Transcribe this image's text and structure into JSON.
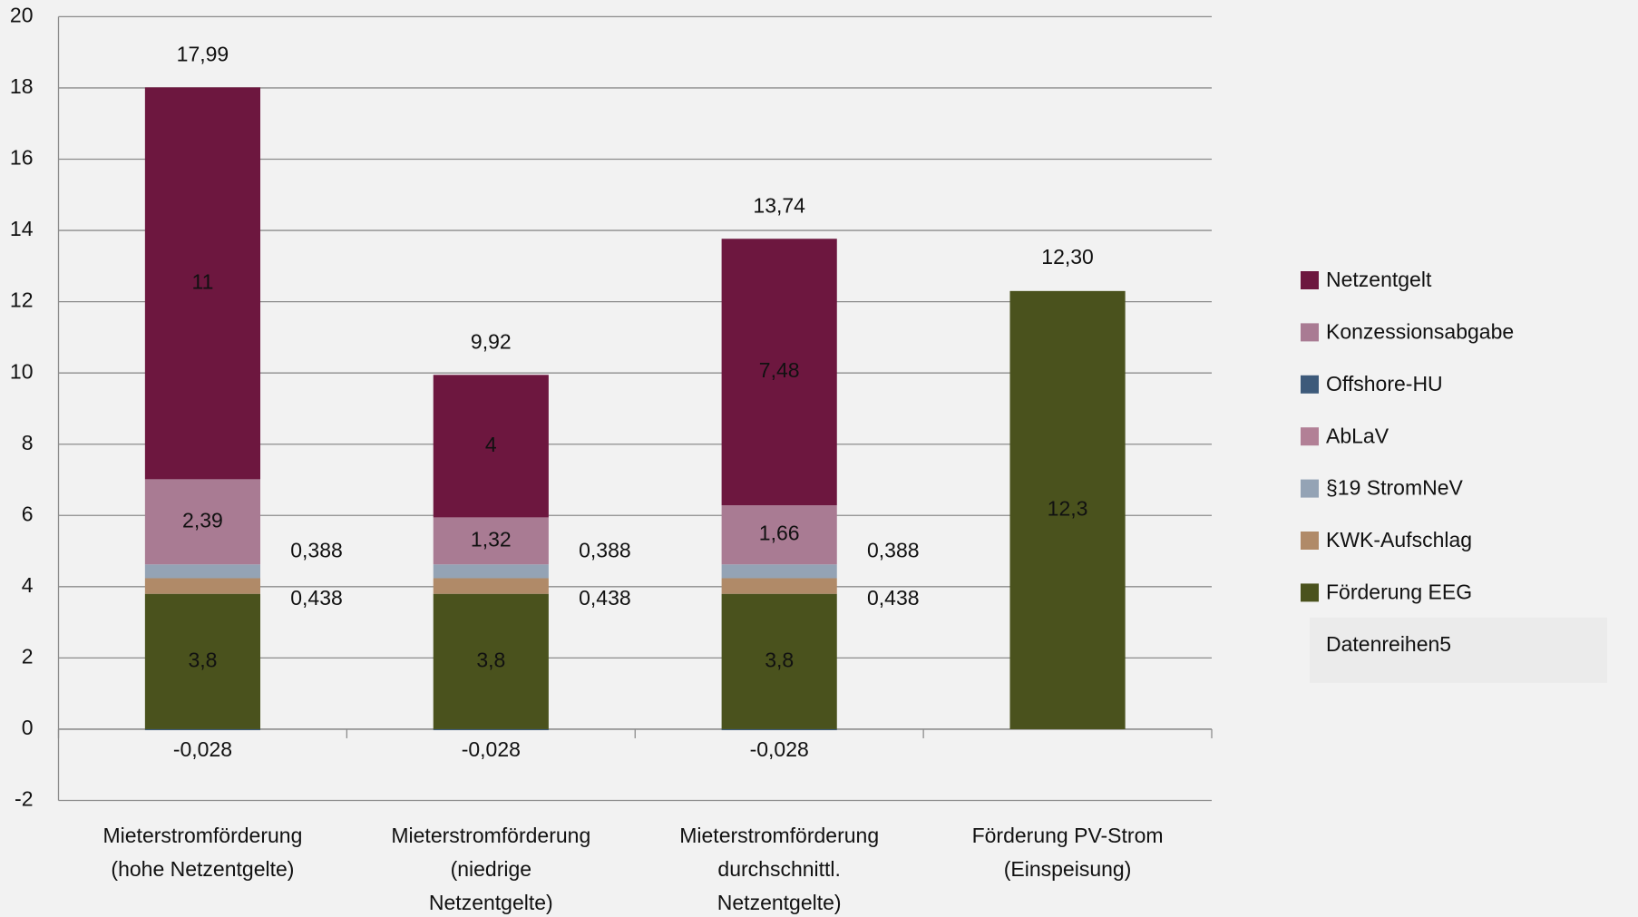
{
  "chart_data": {
    "type": "stacked_bar",
    "categories": [
      "Mieterstromförderung\n(hohe Netzentgelte)",
      "Mieterstromförderung\n(niedrige\nNetzentgelte)",
      "Mieterstromförderung\ndurchschnittl.\nNetzentgelte)",
      "Förderung PV-Strom\n(Einspeisung)"
    ],
    "series": [
      {
        "name": "Netzentgelt",
        "color": "#6d173f",
        "values": [
          11,
          4,
          7.48,
          null
        ],
        "value_labels": [
          "11",
          "4",
          "7,48",
          null
        ]
      },
      {
        "name": "Konzessionsabgabe",
        "color": "#a97b93",
        "values": [
          2.39,
          1.32,
          1.66,
          null
        ],
        "value_labels": [
          "2,39",
          "1,32",
          "1,66",
          null
        ]
      },
      {
        "name": "Offshore-HU",
        "color": "#3d5a7a",
        "values": [
          -0.028,
          -0.028,
          -0.028,
          null
        ],
        "value_labels": [
          "-0,028",
          "-0,028",
          "-0,028",
          null
        ]
      },
      {
        "name": "AbLaV",
        "color": "#b28096",
        "values": [
          null,
          null,
          null,
          null
        ],
        "value_labels": [
          null,
          null,
          null,
          null
        ]
      },
      {
        "name": "§19 StromNeV",
        "color": "#94a3b5",
        "values": [
          0.388,
          0.388,
          0.388,
          null
        ],
        "value_labels": [
          "0,388",
          "0,388",
          "0,388",
          null
        ]
      },
      {
        "name": "KWK-Aufschlag",
        "color": "#b08a68",
        "values": [
          0.438,
          0.438,
          0.438,
          null
        ],
        "value_labels": [
          "0,438",
          "0,438",
          "0,438",
          null
        ]
      },
      {
        "name": "Förderung EEG",
        "color": "#4a521d",
        "values": [
          3.8,
          3.8,
          3.8,
          12.3
        ],
        "value_labels": [
          "3,8",
          "3,8",
          "3,8",
          "12,3"
        ]
      },
      {
        "name": "Datenreihen5",
        "color": null,
        "values": [
          17.99,
          9.92,
          13.74,
          12.3
        ],
        "value_labels": [
          "17,99",
          "9,92",
          "13,74",
          "12,30"
        ]
      }
    ],
    "ylim": [
      -2,
      20
    ],
    "yticks": [
      -2,
      0,
      2,
      4,
      6,
      8,
      10,
      12,
      14,
      16,
      18,
      20
    ],
    "grid": true,
    "legend": "right"
  }
}
